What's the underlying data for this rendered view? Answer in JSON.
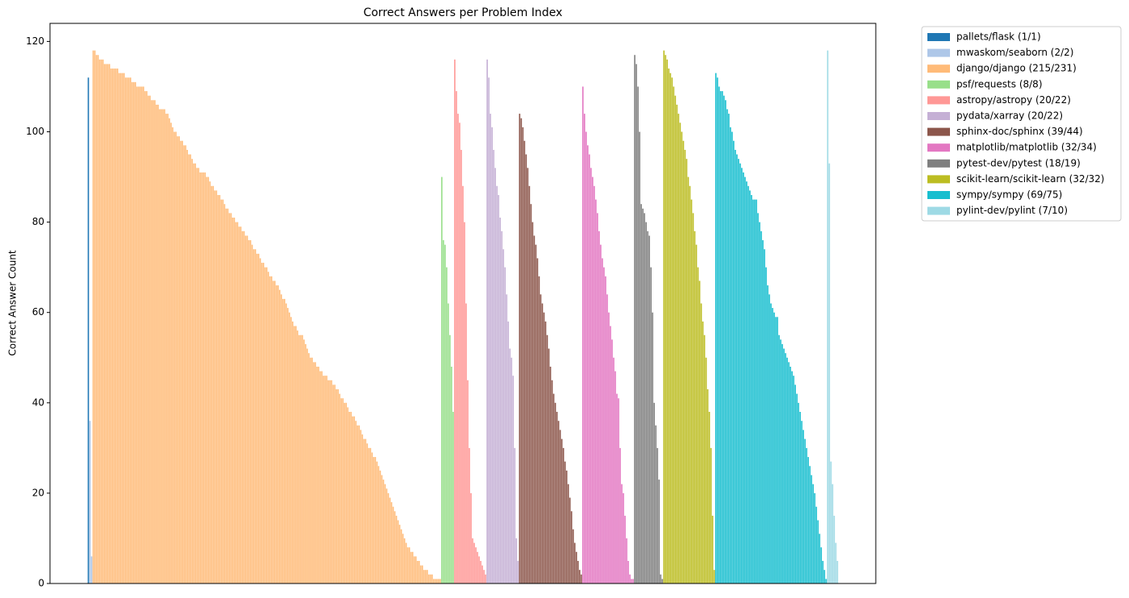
{
  "chart_data": {
    "type": "bar",
    "title": "Correct Answers per Problem Index",
    "y_label": "Correct Answer Count",
    "ylim": [
      0,
      124
    ],
    "yticks": [
      0,
      20,
      40,
      60,
      80,
      100,
      120
    ],
    "series": [
      {
        "name": "pallets/flask (1/1)",
        "color": "#1f77b4",
        "values": [
          112
        ]
      },
      {
        "name": "mwaskom/seaborn (2/2)",
        "color": "#aec7e8",
        "values": [
          36,
          6
        ]
      },
      {
        "name": "django/django (215/231)",
        "color": "#ffbb78",
        "values": [
          118,
          118,
          117,
          117,
          116,
          116,
          116,
          115,
          115,
          115,
          115,
          114,
          114,
          114,
          114,
          114,
          113,
          113,
          113,
          113,
          112,
          112,
          112,
          112,
          111,
          111,
          111,
          110,
          110,
          110,
          110,
          110,
          109,
          109,
          108,
          108,
          107,
          107,
          107,
          106,
          106,
          105,
          105,
          105,
          105,
          104,
          104,
          103,
          102,
          101,
          100,
          100,
          99,
          99,
          98,
          98,
          97,
          97,
          96,
          95,
          95,
          94,
          93,
          93,
          92,
          92,
          91,
          91,
          91,
          91,
          90,
          90,
          89,
          88,
          88,
          87,
          87,
          86,
          86,
          85,
          85,
          84,
          83,
          83,
          82,
          82,
          81,
          81,
          80,
          80,
          79,
          79,
          78,
          78,
          77,
          77,
          76,
          76,
          75,
          74,
          74,
          73,
          73,
          72,
          71,
          71,
          70,
          70,
          69,
          68,
          68,
          67,
          67,
          66,
          66,
          65,
          64,
          63,
          63,
          62,
          61,
          60,
          59,
          58,
          57,
          57,
          56,
          55,
          55,
          55,
          54,
          53,
          52,
          51,
          50,
          50,
          49,
          49,
          48,
          48,
          47,
          47,
          46,
          46,
          46,
          45,
          45,
          45,
          44,
          44,
          43,
          43,
          42,
          41,
          41,
          40,
          40,
          39,
          38,
          38,
          37,
          37,
          36,
          35,
          35,
          34,
          33,
          32,
          32,
          31,
          30,
          30,
          29,
          28,
          28,
          27,
          26,
          25,
          24,
          23,
          22,
          21,
          20,
          19,
          18,
          17,
          16,
          15,
          14,
          13,
          12,
          11,
          10,
          9,
          8,
          8,
          7,
          7,
          6,
          6,
          5,
          5,
          4,
          4,
          3,
          3,
          3,
          2,
          2,
          2,
          1,
          1,
          1,
          1,
          1
        ]
      },
      {
        "name": "psf/requests (8/8)",
        "color": "#98df8a",
        "values": [
          90,
          76,
          75,
          70,
          62,
          55,
          48,
          38
        ]
      },
      {
        "name": "astropy/astropy (20/22)",
        "color": "#ff9896",
        "values": [
          116,
          109,
          104,
          102,
          96,
          88,
          80,
          62,
          45,
          30,
          20,
          10,
          9,
          8,
          7,
          6,
          5,
          4,
          3,
          2
        ]
      },
      {
        "name": "pydata/xarray (20/22)",
        "color": "#c5b0d5",
        "values": [
          116,
          112,
          104,
          101,
          96,
          92,
          88,
          86,
          81,
          78,
          74,
          70,
          64,
          58,
          52,
          50,
          46,
          30,
          10,
          5
        ]
      },
      {
        "name": "sphinx-doc/sphinx (39/44)",
        "color": "#8c564b",
        "values": [
          104,
          103,
          101,
          98,
          95,
          92,
          88,
          84,
          80,
          77,
          75,
          72,
          68,
          64,
          62,
          60,
          58,
          55,
          52,
          48,
          45,
          42,
          40,
          38,
          36,
          34,
          32,
          30,
          27,
          25,
          22,
          19,
          16,
          12,
          9,
          7,
          5,
          3,
          2
        ]
      },
      {
        "name": "matplotlib/matplotlib (32/34)",
        "color": "#e377c2",
        "values": [
          110,
          104,
          100,
          97,
          95,
          92,
          90,
          88,
          85,
          82,
          78,
          75,
          72,
          70,
          68,
          64,
          60,
          57,
          54,
          50,
          47,
          42,
          41,
          30,
          22,
          20,
          15,
          10,
          5,
          2,
          1,
          1
        ]
      },
      {
        "name": "pytest-dev/pytest (18/19)",
        "color": "#7f7f7f",
        "values": [
          117,
          115,
          110,
          100,
          84,
          83,
          82,
          80,
          78,
          77,
          70,
          60,
          40,
          35,
          30,
          23,
          2,
          1
        ]
      },
      {
        "name": "scikit-learn/scikit-learn (32/32)",
        "color": "#bcbd22",
        "values": [
          118,
          117,
          116,
          114,
          113,
          112,
          110,
          108,
          106,
          104,
          102,
          100,
          98,
          96,
          94,
          90,
          88,
          85,
          82,
          78,
          75,
          70,
          67,
          62,
          58,
          55,
          50,
          43,
          38,
          30,
          15,
          3
        ]
      },
      {
        "name": "sympy/sympy (69/75)",
        "color": "#17becf",
        "values": [
          113,
          112,
          110,
          109,
          109,
          108,
          107,
          105,
          104,
          101,
          100,
          98,
          96,
          95,
          94,
          93,
          92,
          91,
          90,
          89,
          88,
          87,
          86,
          85,
          85,
          85,
          82,
          80,
          78,
          76,
          74,
          70,
          66,
          64,
          62,
          61,
          60,
          59,
          59,
          55,
          54,
          53,
          52,
          51,
          50,
          49,
          48,
          47,
          46,
          44,
          42,
          40,
          38,
          36,
          34,
          32,
          30,
          28,
          26,
          24,
          22,
          20,
          17,
          14,
          11,
          8,
          5,
          3,
          1
        ]
      },
      {
        "name": "pylint-dev/pylint (7/10)",
        "color": "#9edae5",
        "values": [
          118,
          93,
          27,
          22,
          15,
          9,
          5
        ]
      }
    ]
  }
}
